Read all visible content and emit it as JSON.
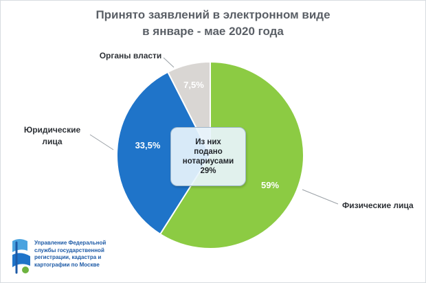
{
  "title": {
    "line1": "Принято заявлений в электронном виде",
    "line2": "в январе - мае 2020 года"
  },
  "chart_data": {
    "type": "pie",
    "title": "Принято заявлений в электронном виде в январе - мае 2020 года",
    "slices": [
      {
        "name": "Физические лица",
        "value": 59,
        "label": "59%",
        "color": "#8ccb43"
      },
      {
        "name": "Юридические лица",
        "value": 33.5,
        "label": "33,5%",
        "color": "#1f74c9"
      },
      {
        "name": "Органы власти",
        "value": 7.5,
        "label": "7,5%",
        "color": "#d9d6d3"
      }
    ],
    "callout": {
      "line1": "Из них",
      "line2": "подано",
      "line3": "нотариусами",
      "value": "29%"
    },
    "category_labels": {
      "phys": "Физические лица",
      "legal_line1": "Юридические",
      "legal_line2": "лица",
      "gov": "Органы власти"
    }
  },
  "logo": {
    "lines": [
      "Управление Федеральной",
      "службы государственной",
      "регистрации, кадастра и",
      "картографии по Москве"
    ]
  }
}
